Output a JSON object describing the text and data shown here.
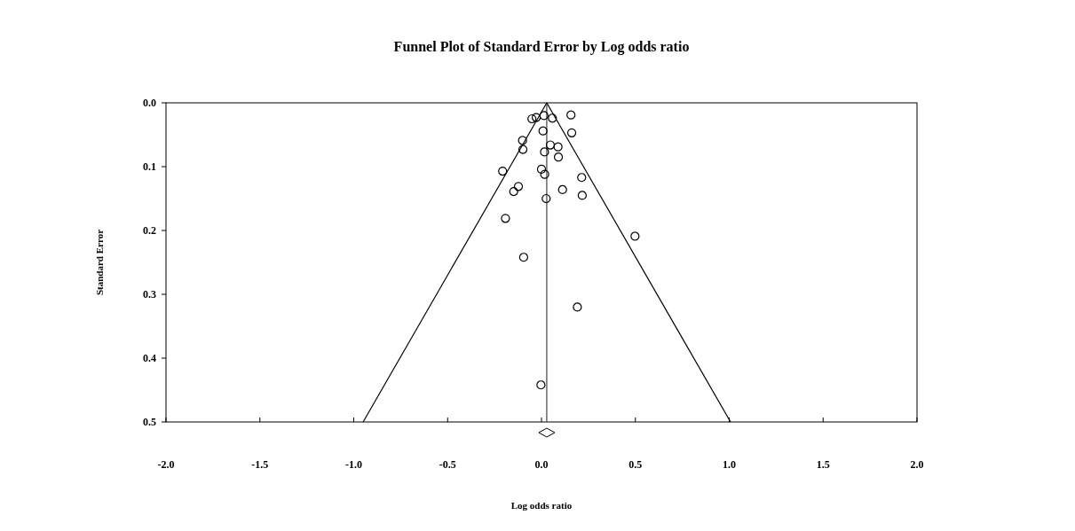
{
  "chart_data": {
    "type": "scatter",
    "title": "Funnel Plot of Standard Error by Log odds ratio",
    "xlabel": "Log odds ratio",
    "ylabel": "Standard Error",
    "xlim": [
      -2,
      2
    ],
    "ylim": [
      0.5,
      0
    ],
    "xticks": [
      {
        "value": -2,
        "label": "-2.0"
      },
      {
        "value": -1.5,
        "label": "-1.5"
      },
      {
        "value": -1,
        "label": "-1.0"
      },
      {
        "value": -0.5,
        "label": "-0.5"
      },
      {
        "value": 0,
        "label": "0.0"
      },
      {
        "value": 0.5,
        "label": "0.5"
      },
      {
        "value": 1,
        "label": "1.0"
      },
      {
        "value": 1.5,
        "label": "1.5"
      },
      {
        "value": 2,
        "label": "2.0"
      }
    ],
    "yticks": [
      {
        "value": 0,
        "label": "0.0"
      },
      0.1,
      0.2,
      0.3,
      0.4,
      0.5
    ],
    "grid": false,
    "ref_lines": [
      {
        "axis": "x",
        "value": 0.028,
        "color": "#444444"
      }
    ],
    "series": [
      {
        "marker": "circle",
        "color": "#000000",
        "x": [
          -0.051,
          -0.028,
          0.013,
          0.058,
          0.157,
          0.008,
          0.161,
          -0.101,
          -0.099,
          0.047,
          0.088,
          0.016,
          0.09,
          -0.207,
          0.0,
          0.017,
          0.214,
          -0.123,
          -0.148,
          0.112,
          0.217,
          0.025,
          -0.192,
          0.498,
          -0.095,
          0.191,
          -0.003
        ],
        "values": [
          0.025,
          0.023,
          0.02,
          0.024,
          0.019,
          0.044,
          0.047,
          0.059,
          0.073,
          0.066,
          0.069,
          0.077,
          0.085,
          0.107,
          0.104,
          0.112,
          0.117,
          0.131,
          0.139,
          0.136,
          0.145,
          0.15,
          0.181,
          0.209,
          0.242,
          0.32,
          0.442
        ]
      },
      {
        "type": "line",
        "color": "#000000",
        "x": [
          -0.95,
          0.028,
          1.007
        ],
        "values": [
          0.5,
          0,
          0.5
        ]
      }
    ]
  }
}
